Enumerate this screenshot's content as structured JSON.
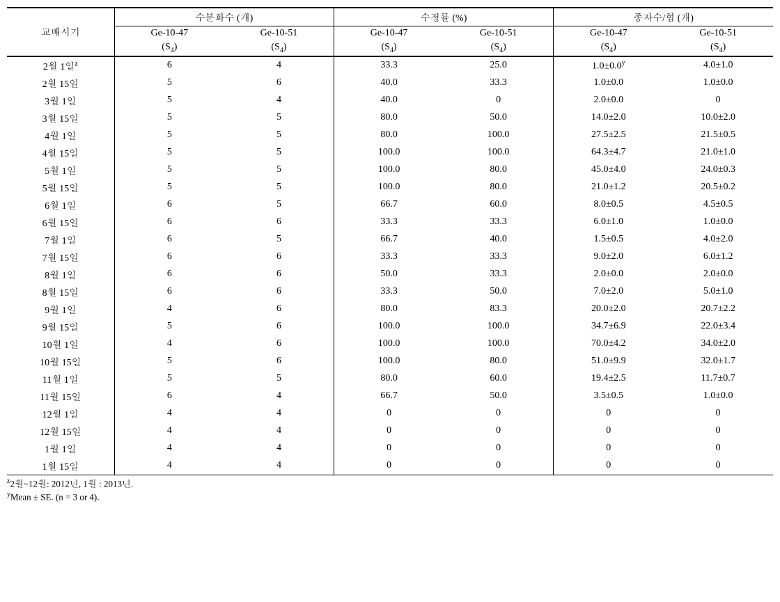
{
  "table": {
    "row_label_header": "교배시기",
    "groups": [
      {
        "title": "수분화수 (개)",
        "sub1": "Ge-10-47",
        "sub2": "Ge-10-51",
        "s": "(S",
        "s_sub": "4",
        "s_close": ")"
      },
      {
        "title": "수정률 (%)",
        "sub1": "Ge-10-47",
        "sub2": "Ge-10-51",
        "s": "(S",
        "s_sub": "4",
        "s_close": ")"
      },
      {
        "title": "종자수/협 (개)",
        "sub1": "Ge-10-47",
        "sub2": "Ge-10-51",
        "s": "(S",
        "s_sub": "4",
        "s_close": ")"
      }
    ],
    "first_row_sup_z": "z",
    "first_row_sup_y": "y",
    "rows": [
      {
        "label": "2월 1일",
        "c": [
          "6",
          "4",
          "33.3",
          "25.0",
          "1.0±0.0",
          "4.0±1.0"
        ]
      },
      {
        "label": "2월 15일",
        "c": [
          "5",
          "6",
          "40.0",
          "33.3",
          "1.0±0.0",
          "1.0±0.0"
        ]
      },
      {
        "label": "3월 1일",
        "c": [
          "5",
          "4",
          "40.0",
          "0",
          "2.0±0.0",
          "0"
        ]
      },
      {
        "label": "3월 15일",
        "c": [
          "5",
          "5",
          "80.0",
          "50.0",
          "14.0±2.0",
          "10.0±2.0"
        ]
      },
      {
        "label": "4월 1일",
        "c": [
          "5",
          "5",
          "80.0",
          "100.0",
          "27.5±2.5",
          "21.5±0.5"
        ]
      },
      {
        "label": "4월 15일",
        "c": [
          "5",
          "5",
          "100.0",
          "100.0",
          "64.3±4.7",
          "21.0±1.0"
        ]
      },
      {
        "label": "5월 1일",
        "c": [
          "5",
          "5",
          "100.0",
          "80.0",
          "45.0±4.0",
          "24.0±0.3"
        ]
      },
      {
        "label": "5월 15일",
        "c": [
          "5",
          "5",
          "100.0",
          "80.0",
          "21.0±1.2",
          "20.5±0.2"
        ]
      },
      {
        "label": "6월 1일",
        "c": [
          "6",
          "5",
          "66.7",
          "60.0",
          "8.0±0.5",
          "4.5±0.5"
        ]
      },
      {
        "label": "6월 15일",
        "c": [
          "6",
          "6",
          "33.3",
          "33.3",
          "6.0±1.0",
          "1.0±0.0"
        ]
      },
      {
        "label": "7월 1일",
        "c": [
          "6",
          "5",
          "66.7",
          "40.0",
          "1.5±0.5",
          "4.0±2.0"
        ]
      },
      {
        "label": "7월 15일",
        "c": [
          "6",
          "6",
          "33.3",
          "33.3",
          "9.0±2.0",
          "6.0±1.2"
        ]
      },
      {
        "label": "8월 1일",
        "c": [
          "6",
          "6",
          "50.0",
          "33.3",
          "2.0±0.0",
          "2.0±0.0"
        ]
      },
      {
        "label": "8월 15일",
        "c": [
          "6",
          "6",
          "33.3",
          "50.0",
          "7.0±2.0",
          "5.0±1.0"
        ]
      },
      {
        "label": "9월 1일",
        "c": [
          "4",
          "6",
          "80.0",
          "83.3",
          "20.0±2.0",
          "20.7±2.2"
        ]
      },
      {
        "label": "9월 15일",
        "c": [
          "5",
          "6",
          "100.0",
          "100.0",
          "34.7±6.9",
          "22.0±3.4"
        ]
      },
      {
        "label": "10월 1일",
        "c": [
          "4",
          "6",
          "100.0",
          "100.0",
          "70.0±4.2",
          "34.0±2.0"
        ]
      },
      {
        "label": "10월 15일",
        "c": [
          "5",
          "6",
          "100.0",
          "80.0",
          "51.0±9.9",
          "32.0±1.7"
        ]
      },
      {
        "label": "11월 1일",
        "c": [
          "5",
          "5",
          "80.0",
          "60.0",
          "19.4±2.5",
          "11.7±0.7"
        ]
      },
      {
        "label": "11월 15일",
        "c": [
          "6",
          "4",
          "66.7",
          "50.0",
          "3.5±0.5",
          "1.0±0.0"
        ]
      },
      {
        "label": "12월 1일",
        "c": [
          "4",
          "4",
          "0",
          "0",
          "0",
          "0"
        ]
      },
      {
        "label": "12월 15일",
        "c": [
          "4",
          "4",
          "0",
          "0",
          "0",
          "0"
        ]
      },
      {
        "label": "1월 1일",
        "c": [
          "4",
          "4",
          "0",
          "0",
          "0",
          "0"
        ]
      },
      {
        "label": "1월 15일",
        "c": [
          "4",
          "4",
          "0",
          "0",
          "0",
          "0"
        ]
      }
    ]
  },
  "footnotes": {
    "z_sup": "z",
    "z_text": "2월~12월: 2012년, 1월 : 2013년.",
    "y_sup": "y",
    "y_text": "Mean ± SE. (n = 3 or 4)."
  }
}
